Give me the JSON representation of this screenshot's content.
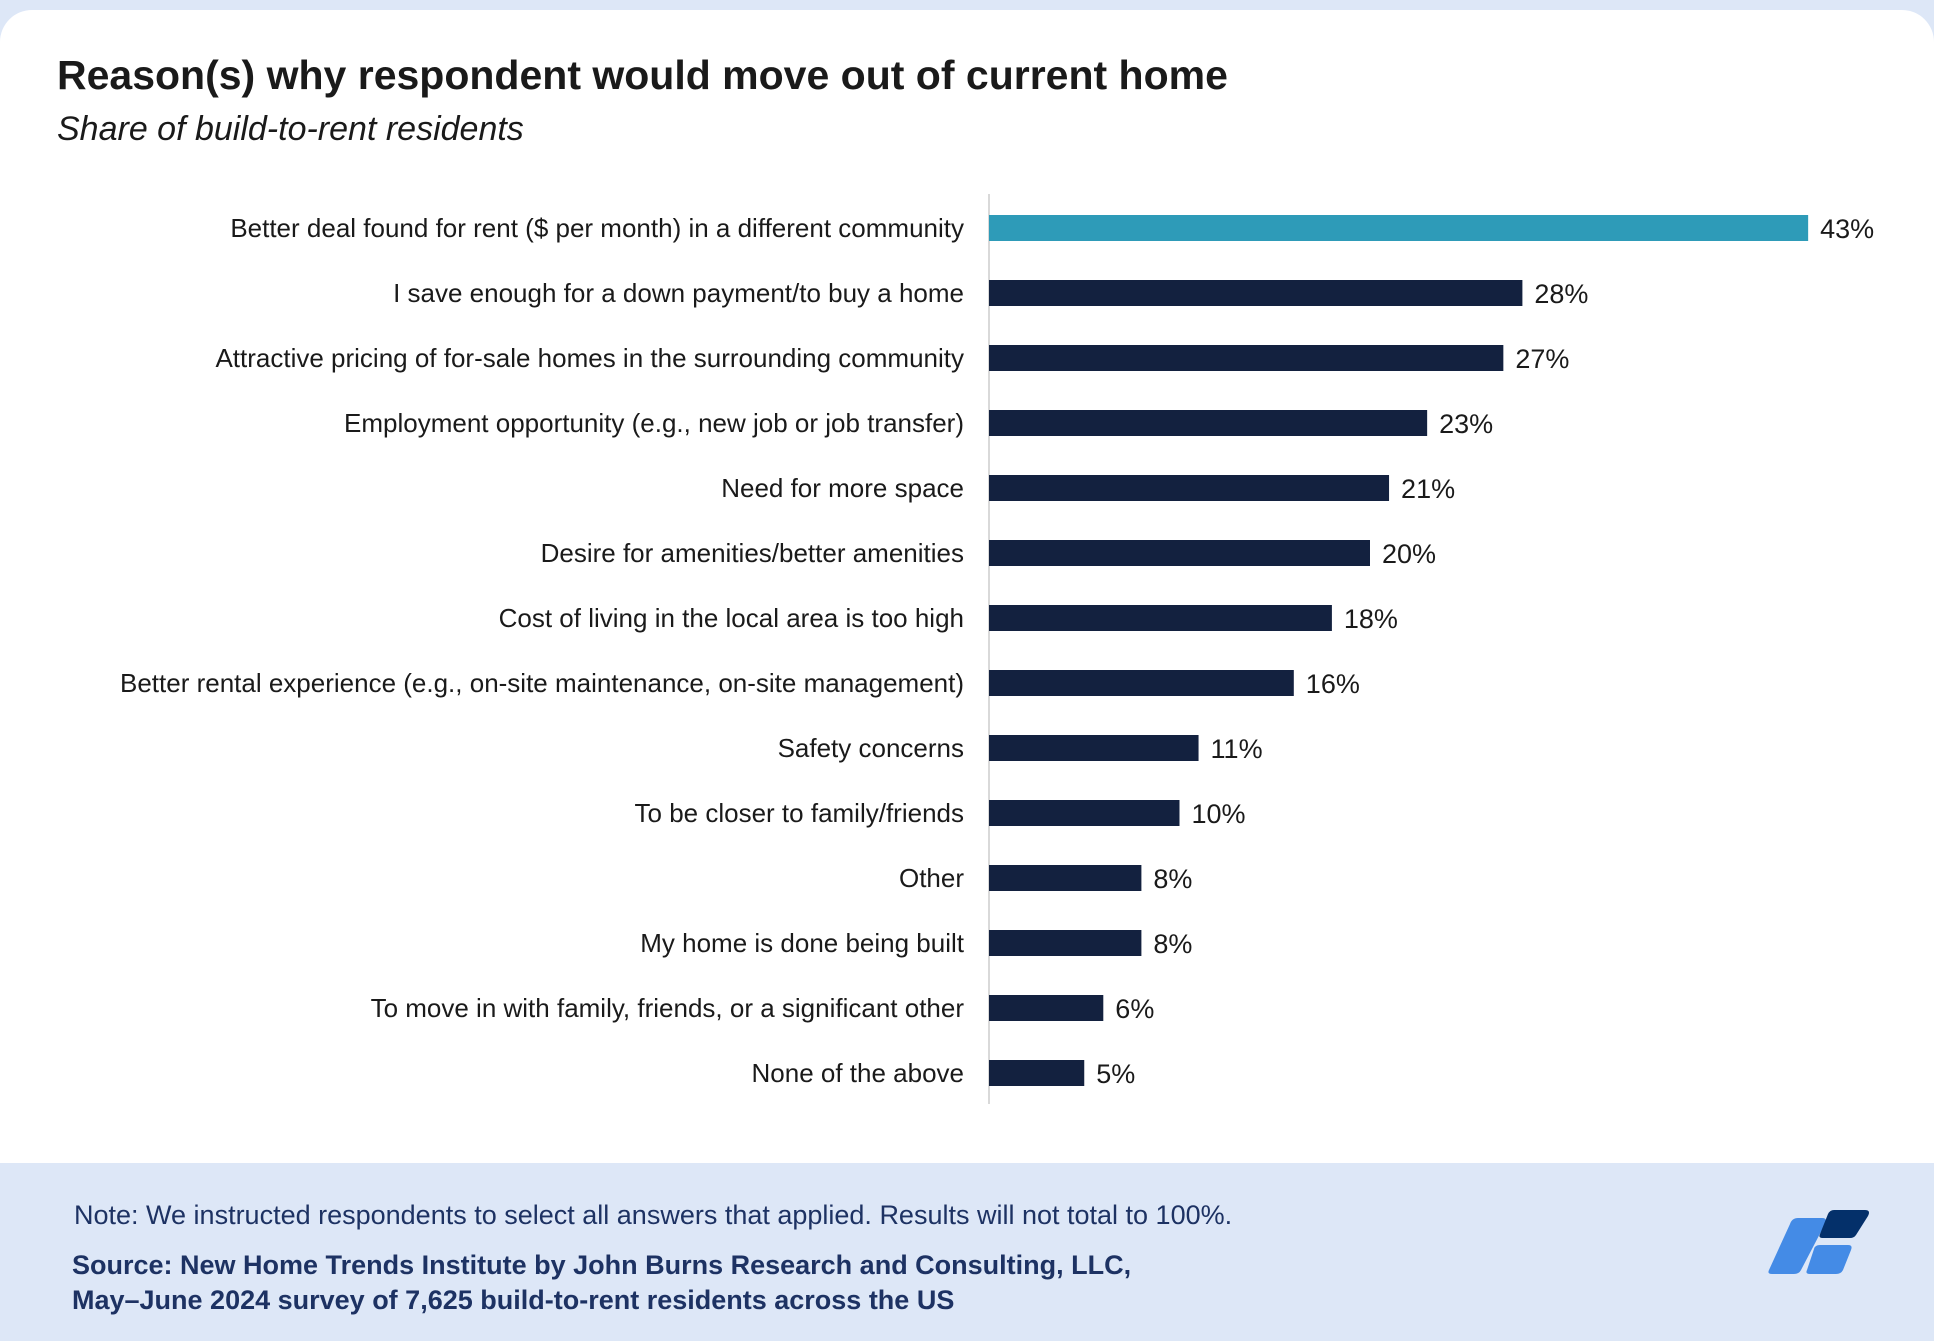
{
  "chart_data": {
    "type": "bar",
    "orientation": "horizontal",
    "title": "Reason(s) why respondent would move out of current home",
    "subtitle": "Share of build-to-rent residents",
    "categories": [
      "Better deal found for rent ($ per month) in a different community",
      "I save enough for a down payment/to buy a home",
      "Attractive pricing of for-sale homes in the surrounding community",
      "Employment opportunity (e.g., new job or job transfer)",
      "Need for more space",
      "Desire for amenities/better amenities",
      "Cost of living in the local area is too high",
      "Better rental experience (e.g., on-site maintenance, on-site management)",
      "Safety concerns",
      "To be closer to family/friends",
      "Other",
      "My home is done being built",
      "To move in with family, friends, or a significant other",
      "None of the above"
    ],
    "values": [
      43,
      28,
      27,
      23,
      21,
      20,
      18,
      16,
      11,
      10,
      8,
      8,
      6,
      5
    ],
    "value_labels": [
      "43%",
      "28%",
      "27%",
      "23%",
      "21%",
      "20%",
      "18%",
      "16%",
      "11%",
      "10%",
      "8%",
      "8%",
      "6%",
      "5%"
    ],
    "unit": "%",
    "xlim": [
      0,
      43
    ],
    "grid": false,
    "highlight_index": 0,
    "colors": {
      "highlight": "#2e9bb8",
      "default": "#13213f"
    }
  },
  "footer": {
    "note": "Note: We instructed respondents to select all answers that applied. Results will not total to 100%.",
    "source_line1": "Source: New Home Trends Institute by John Burns Research and Consulting, LLC,",
    "source_line2": "May–June 2024 survey of 7,625 build-to-rent residents across the US"
  }
}
